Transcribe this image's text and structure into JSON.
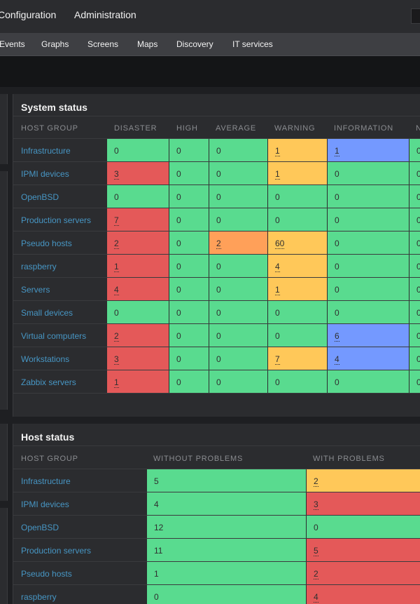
{
  "top_nav": [
    "Configuration",
    "Administration"
  ],
  "sub_nav": [
    "Events",
    "Graphs",
    "Screens",
    "Maps",
    "Discovery",
    "IT services"
  ],
  "system_status": {
    "title": "System status",
    "columns": [
      "HOST GROUP",
      "DISASTER",
      "HIGH",
      "AVERAGE",
      "WARNING",
      "INFORMATION",
      "N"
    ],
    "rows": [
      {
        "group": "Infrastructure",
        "values": [
          "0",
          "0",
          "0",
          "1",
          "1",
          "0"
        ]
      },
      {
        "group": "IPMI devices",
        "values": [
          "3",
          "0",
          "0",
          "1",
          "0",
          "0"
        ]
      },
      {
        "group": "OpenBSD",
        "values": [
          "0",
          "0",
          "0",
          "0",
          "0",
          "0"
        ]
      },
      {
        "group": "Production servers",
        "values": [
          "7",
          "0",
          "0",
          "0",
          "0",
          "0"
        ]
      },
      {
        "group": "Pseudo hosts",
        "values": [
          "2",
          "0",
          "2",
          "60",
          "0",
          "0"
        ]
      },
      {
        "group": "raspberry",
        "values": [
          "1",
          "0",
          "0",
          "4",
          "0",
          "0"
        ]
      },
      {
        "group": "Servers",
        "values": [
          "4",
          "0",
          "0",
          "1",
          "0",
          "0"
        ]
      },
      {
        "group": "Small devices",
        "values": [
          "0",
          "0",
          "0",
          "0",
          "0",
          "0"
        ]
      },
      {
        "group": "Virtual computers",
        "values": [
          "2",
          "0",
          "0",
          "0",
          "6",
          "0"
        ]
      },
      {
        "group": "Workstations",
        "values": [
          "3",
          "0",
          "0",
          "7",
          "4",
          "0"
        ]
      },
      {
        "group": "Zabbix servers",
        "values": [
          "1",
          "0",
          "0",
          "0",
          "0",
          "0"
        ]
      }
    ]
  },
  "host_status": {
    "title": "Host status",
    "columns": [
      "HOST GROUP",
      "WITHOUT PROBLEMS",
      "WITH PROBLEMS"
    ],
    "rows": [
      {
        "group": "Infrastructure",
        "values": [
          "5",
          "2"
        ]
      },
      {
        "group": "IPMI devices",
        "values": [
          "4",
          "3"
        ]
      },
      {
        "group": "OpenBSD",
        "values": [
          "12",
          "0"
        ]
      },
      {
        "group": "Production servers",
        "values": [
          "11",
          "5"
        ]
      },
      {
        "group": "Pseudo hosts",
        "values": [
          "1",
          "2"
        ]
      },
      {
        "group": "raspberry",
        "values": [
          "0",
          "4"
        ]
      }
    ]
  },
  "colors": {
    "ok": "#59db8f",
    "disaster": "#e45959",
    "warning": "#ffc859",
    "average": "#ffa059",
    "information": "#7499ff",
    "link": "#4796c4"
  }
}
